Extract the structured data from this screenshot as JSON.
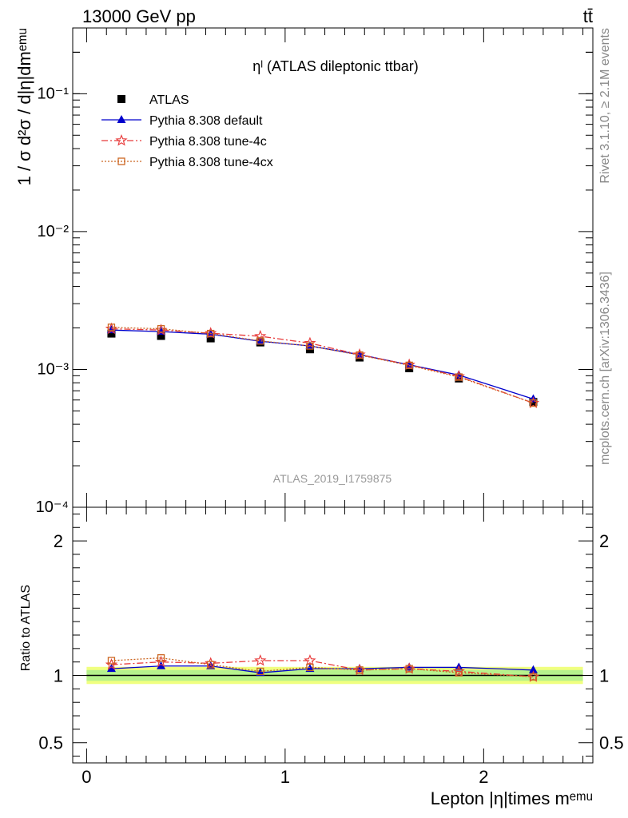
{
  "header": {
    "left": "13000 GeV pp",
    "right": "tt̄"
  },
  "side": {
    "rivet": "Rivet 3.1.10, ≥ 2.1M events",
    "mcplots": "mcplots.cern.ch [arXiv:1306.3436]"
  },
  "watermark": "ATLAS_2019_I1759875",
  "chart_data": [
    {
      "type": "line",
      "panel": "main",
      "title": "ηˡ (ATLAS dileptonic ttbar)",
      "ylabel": "1 / σ d²σ / d|η|dmᵉᵐᵘ",
      "xlabel": "",
      "yscale": "log",
      "ylim": [
        0.0001,
        0.3
      ],
      "xlim": [
        -0.07,
        2.55
      ],
      "y_ticks": [
        {
          "label": "10⁻⁴",
          "value": 0.0001
        },
        {
          "label": "10⁻³",
          "value": 0.001
        },
        {
          "label": "10⁻²",
          "value": 0.01
        },
        {
          "label": "10⁻¹",
          "value": 0.1
        }
      ],
      "x": [
        0.125,
        0.375,
        0.625,
        0.875,
        1.125,
        1.375,
        1.625,
        1.875,
        2.25
      ],
      "legend_placement": "top-left",
      "series": [
        {
          "name": "ATLAS",
          "color": "#000000",
          "marker": "square",
          "values": [
            0.00182,
            0.00175,
            0.00168,
            0.00157,
            0.0014,
            0.00122,
            0.00102,
            0.00086,
            0.00058
          ]
        },
        {
          "name": "Pythia 8.308 default",
          "color": "#0000cc",
          "marker": "triangle",
          "line": "solid",
          "values": [
            0.00193,
            0.00188,
            0.0018,
            0.0016,
            0.00148,
            0.00128,
            0.00108,
            0.00091,
            0.00061
          ]
        },
        {
          "name": "Pythia 8.308 tune-4c",
          "color": "#e83a3a",
          "marker": "star",
          "line": "dashdot",
          "values": [
            0.00197,
            0.00193,
            0.00183,
            0.00174,
            0.00155,
            0.00128,
            0.00108,
            0.00089,
            0.00057
          ]
        },
        {
          "name": "Pythia 8.308 tune-4cx",
          "color": "#cc6622",
          "marker": "open-square",
          "line": "dotted",
          "values": [
            0.00202,
            0.00197,
            0.00182,
            0.00161,
            0.00148,
            0.00127,
            0.00107,
            0.00088,
            0.00057
          ]
        }
      ]
    },
    {
      "type": "line",
      "panel": "ratio",
      "ylabel": "Ratio to ATLAS",
      "xlabel": "Lepton |η|times mᵉᵐᵘ",
      "ylim": [
        0.35,
        2.25
      ],
      "xlim": [
        -0.07,
        2.55
      ],
      "y_ticks": [
        {
          "label": "0.5",
          "value": 0.5
        },
        {
          "label": "1",
          "value": 1
        },
        {
          "label": "2",
          "value": 2
        }
      ],
      "x_ticks": [
        {
          "label": "0",
          "value": 0
        },
        {
          "label": "1",
          "value": 1
        },
        {
          "label": "2",
          "value": 2
        }
      ],
      "band": [
        0.96,
        1.04
      ],
      "x": [
        0.125,
        0.375,
        0.625,
        0.875,
        1.125,
        1.375,
        1.625,
        1.875,
        2.25
      ],
      "series": [
        {
          "name": "Pythia 8.308 default",
          "color": "#0000cc",
          "marker": "triangle",
          "line": "solid",
          "values": [
            1.05,
            1.07,
            1.07,
            1.02,
            1.05,
            1.05,
            1.06,
            1.06,
            1.04
          ]
        },
        {
          "name": "Pythia 8.308 tune-4c",
          "color": "#e83a3a",
          "marker": "star",
          "line": "dashdot",
          "values": [
            1.08,
            1.1,
            1.09,
            1.11,
            1.11,
            1.04,
            1.05,
            1.03,
            0.99
          ]
        },
        {
          "name": "Pythia 8.308 tune-4cx",
          "color": "#cc6622",
          "marker": "open-square",
          "line": "dotted",
          "values": [
            1.11,
            1.13,
            1.08,
            1.03,
            1.06,
            1.04,
            1.05,
            1.02,
            0.99
          ]
        }
      ]
    }
  ]
}
